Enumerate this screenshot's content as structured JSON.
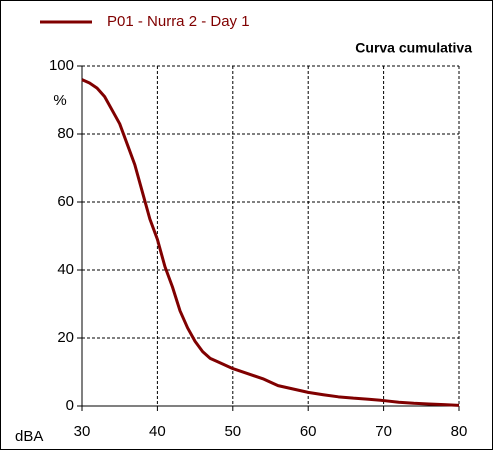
{
  "chart_data": {
    "type": "line",
    "title": "Curva cumulativa",
    "x_label": "dBA",
    "y_label": "%",
    "x": [
      30,
      31,
      32,
      33,
      34,
      35,
      36,
      37,
      38,
      39,
      40,
      41,
      42,
      43,
      44,
      45,
      46,
      47,
      48,
      50,
      52,
      54,
      56,
      58,
      60,
      62,
      64,
      66,
      68,
      70,
      72,
      74,
      76,
      78,
      80
    ],
    "series": [
      {
        "name": "P01 - Nurra 2 - Day 1",
        "color": "#800000",
        "values": [
          96,
          95,
          93.5,
          91,
          87,
          83,
          77,
          71,
          63,
          55,
          49,
          41,
          35,
          28,
          23,
          19,
          16,
          14,
          13,
          11,
          9.5,
          8,
          6,
          5,
          4,
          3.3,
          2.7,
          2.3,
          2,
          1.6,
          1.1,
          0.8,
          0.6,
          0.4,
          0.2
        ]
      }
    ],
    "xlim": [
      30,
      80
    ],
    "xticks": [
      30,
      40,
      50,
      60,
      70,
      80
    ],
    "ylim": [
      0,
      100
    ],
    "yticks": [
      0,
      20,
      40,
      60,
      80,
      100
    ],
    "grid": true
  }
}
